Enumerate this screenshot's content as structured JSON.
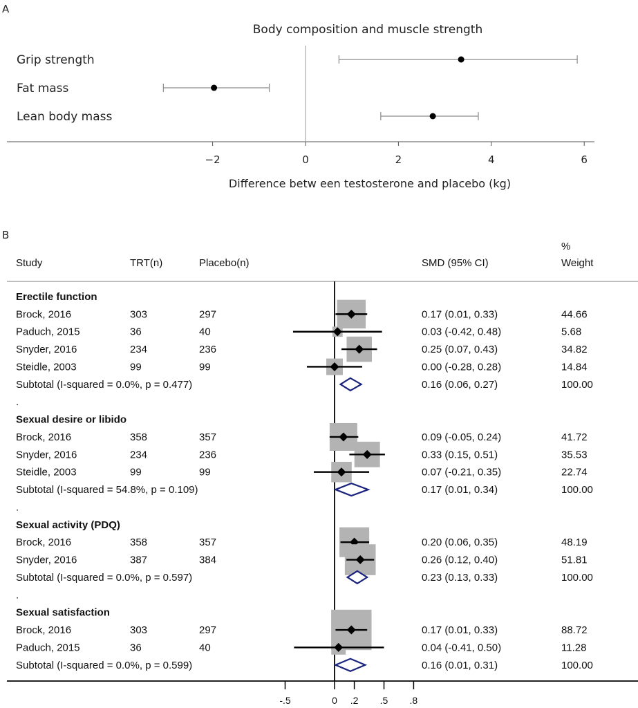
{
  "panel_a": {
    "letter": "A",
    "chart_data": {
      "type": "forest",
      "title": "Body composition and muscle strength",
      "xlabel": "Difference betw een testosterone and placebo (kg)",
      "xlim": [
        -3.2,
        6.2
      ],
      "xticks": [
        -2,
        0,
        2,
        4,
        6
      ],
      "xtick_labels": [
        "−2",
        "0",
        "2",
        "4",
        "6"
      ],
      "rows": [
        {
          "label": "Grip strength",
          "estimate": 3.35,
          "lo": 0.72,
          "hi": 5.85
        },
        {
          "label": "Fat mass",
          "estimate": -1.97,
          "lo": -3.06,
          "hi": -0.78
        },
        {
          "label": "Lean body mass",
          "estimate": 2.74,
          "lo": 1.62,
          "hi": 3.72
        }
      ]
    }
  },
  "panel_b": {
    "letter": "B",
    "headers": {
      "study": "Study",
      "trt": "TRT(n)",
      "placebo": "Placebo(n)",
      "smd": "SMD (95% CI)",
      "weight_top": "%",
      "weight": "Weight"
    },
    "chart_data": {
      "type": "forest",
      "xticks": [
        -0.5,
        0,
        0.2,
        0.5,
        0.8
      ],
      "xtick_labels": [
        "-.5",
        "0",
        ".2",
        ".5",
        ".8"
      ],
      "rows": [
        {
          "kind": "group",
          "label": "Erectile function"
        },
        {
          "kind": "study",
          "study": "Brock, 2016",
          "trt": "303",
          "placebo": "297",
          "smd": 0.17,
          "lo": 0.01,
          "hi": 0.33,
          "ci": "0.17 (0.01, 0.33)",
          "weight": "44.66"
        },
        {
          "kind": "study",
          "study": "Paduch, 2015",
          "trt": "36",
          "placebo": "40",
          "smd": 0.03,
          "lo": -0.42,
          "hi": 0.48,
          "ci": "0.03 (-0.42, 0.48)",
          "weight": "5.68"
        },
        {
          "kind": "study",
          "study": "Snyder, 2016",
          "trt": "234",
          "placebo": "236",
          "smd": 0.25,
          "lo": 0.07,
          "hi": 0.43,
          "ci": "0.25 (0.07, 0.43)",
          "weight": "34.82"
        },
        {
          "kind": "study",
          "study": "Steidle, 2003",
          "trt": "99",
          "placebo": "99",
          "smd": 0.0,
          "lo": -0.28,
          "hi": 0.28,
          "ci": "0.00 (-0.28, 0.28)",
          "weight": "14.84"
        },
        {
          "kind": "subtotal",
          "study": "Subtotal  (I-squared = 0.0%, p = 0.477)",
          "smd": 0.16,
          "lo": 0.06,
          "hi": 0.27,
          "ci": "0.16 (0.06, 0.27)",
          "weight": "100.00"
        },
        {
          "kind": "dot",
          "label": "."
        },
        {
          "kind": "group",
          "label": "Sexual desire or libido"
        },
        {
          "kind": "study",
          "study": "Brock, 2016",
          "trt": "358",
          "placebo": "357",
          "smd": 0.09,
          "lo": -0.05,
          "hi": 0.24,
          "ci": "0.09 (-0.05, 0.24)",
          "weight": "41.72"
        },
        {
          "kind": "study",
          "study": "Snyder, 2016",
          "trt": "234",
          "placebo": "236",
          "smd": 0.33,
          "lo": 0.15,
          "hi": 0.51,
          "ci": "0.33 (0.15, 0.51)",
          "weight": "35.53"
        },
        {
          "kind": "study",
          "study": "Steidle, 2003",
          "trt": "99",
          "placebo": "99",
          "smd": 0.07,
          "lo": -0.21,
          "hi": 0.35,
          "ci": "0.07 (-0.21, 0.35)",
          "weight": "22.74"
        },
        {
          "kind": "subtotal",
          "study": "Subtotal  (I-squared = 54.8%, p = 0.109)",
          "smd": 0.17,
          "lo": 0.01,
          "hi": 0.34,
          "ci": "0.17 (0.01, 0.34)",
          "weight": "100.00"
        },
        {
          "kind": "dot",
          "label": "."
        },
        {
          "kind": "group",
          "label": "Sexual activity (PDQ)"
        },
        {
          "kind": "study",
          "study": "Brock, 2016",
          "trt": "358",
          "placebo": "357",
          "smd": 0.2,
          "lo": 0.06,
          "hi": 0.35,
          "ci": "0.20 (0.06, 0.35)",
          "weight": "48.19"
        },
        {
          "kind": "study",
          "study": "Snyder, 2016",
          "trt": "387",
          "placebo": "384",
          "smd": 0.26,
          "lo": 0.12,
          "hi": 0.4,
          "ci": "0.26 (0.12, 0.40)",
          "weight": "51.81"
        },
        {
          "kind": "subtotal",
          "study": "Subtotal  (I-squared = 0.0%, p = 0.597)",
          "smd": 0.23,
          "lo": 0.13,
          "hi": 0.33,
          "ci": "0.23 (0.13, 0.33)",
          "weight": "100.00"
        },
        {
          "kind": "dot",
          "label": "."
        },
        {
          "kind": "group",
          "label": "Sexual satisfaction"
        },
        {
          "kind": "study",
          "study": "Brock, 2016",
          "trt": "303",
          "placebo": "297",
          "smd": 0.17,
          "lo": 0.01,
          "hi": 0.33,
          "ci": "0.17 (0.01, 0.33)",
          "weight": "88.72"
        },
        {
          "kind": "study",
          "study": "Paduch, 2015",
          "trt": "36",
          "placebo": "40",
          "smd": 0.04,
          "lo": -0.41,
          "hi": 0.5,
          "ci": "0.04 (-0.41, 0.50)",
          "weight": "11.28"
        },
        {
          "kind": "subtotal",
          "study": "Subtotal  (I-squared = 0.0%, p = 0.599)",
          "smd": 0.16,
          "lo": 0.01,
          "hi": 0.31,
          "ci": "0.16 (0.01, 0.31)",
          "weight": "100.00"
        }
      ]
    }
  },
  "colors": {
    "marker": "#000000",
    "ci_line_a": "#8a8a8a",
    "weight_box": "#b3b3b3",
    "diamond": "#1a237e",
    "axis": "#555555"
  }
}
